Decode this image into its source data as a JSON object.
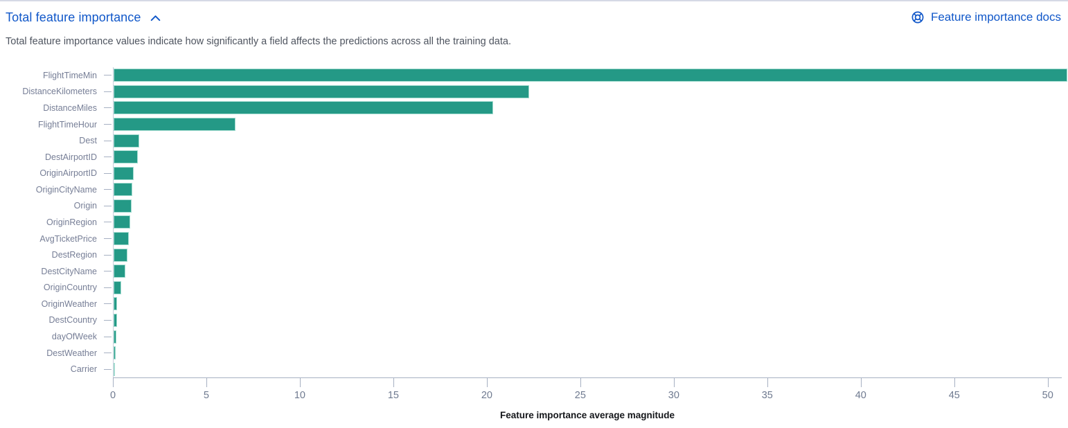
{
  "header": {
    "title": "Total feature importance",
    "docs_link_label": "Feature importance docs",
    "description": "Total feature importance values indicate how significantly a field affects the predictions across all the training data."
  },
  "icons": {
    "accordion_state": "chevron-up (expanded)",
    "docs_icon": "help-lifebuoy"
  },
  "colors": {
    "link": "#1057c9",
    "bar": "#249986",
    "barborder": "#a3dcd0",
    "catlabel": "#767e96",
    "ticklabel": "#6f7a90",
    "axis": "#a6b0c2",
    "yaxis": "#c7cfdc",
    "description": "#4e545f",
    "axistitle": "#14161a",
    "divider": "#d5d9e5"
  },
  "chart_data": {
    "type": "bar",
    "orientation": "horizontal",
    "title": "Total feature importance",
    "xlabel": "Feature importance average magnitude",
    "ylabel": "",
    "categories": [
      "FlightTimeMin",
      "DistanceKilometers",
      "DistanceMiles",
      "FlightTimeHour",
      "Dest",
      "DestAirportID",
      "OriginAirportID",
      "OriginCityName",
      "Origin",
      "OriginRegion",
      "AvgTicketPrice",
      "DestRegion",
      "DestCityName",
      "OriginCountry",
      "OriginWeather",
      "DestCountry",
      "dayOfWeek",
      "DestWeather",
      "Carrier"
    ],
    "values": [
      50.7,
      22.1,
      20.2,
      6.5,
      1.35,
      1.3,
      1.05,
      1.0,
      0.95,
      0.9,
      0.82,
      0.72,
      0.63,
      0.42,
      0.2,
      0.18,
      0.15,
      0.12,
      0.05
    ],
    "x_ticks": [
      0,
      5,
      10,
      15,
      20,
      25,
      30,
      35,
      40,
      45,
      50
    ],
    "xlim": [
      0,
      50.75
    ],
    "grid": false,
    "legend": false,
    "bar_color": "#249986"
  }
}
